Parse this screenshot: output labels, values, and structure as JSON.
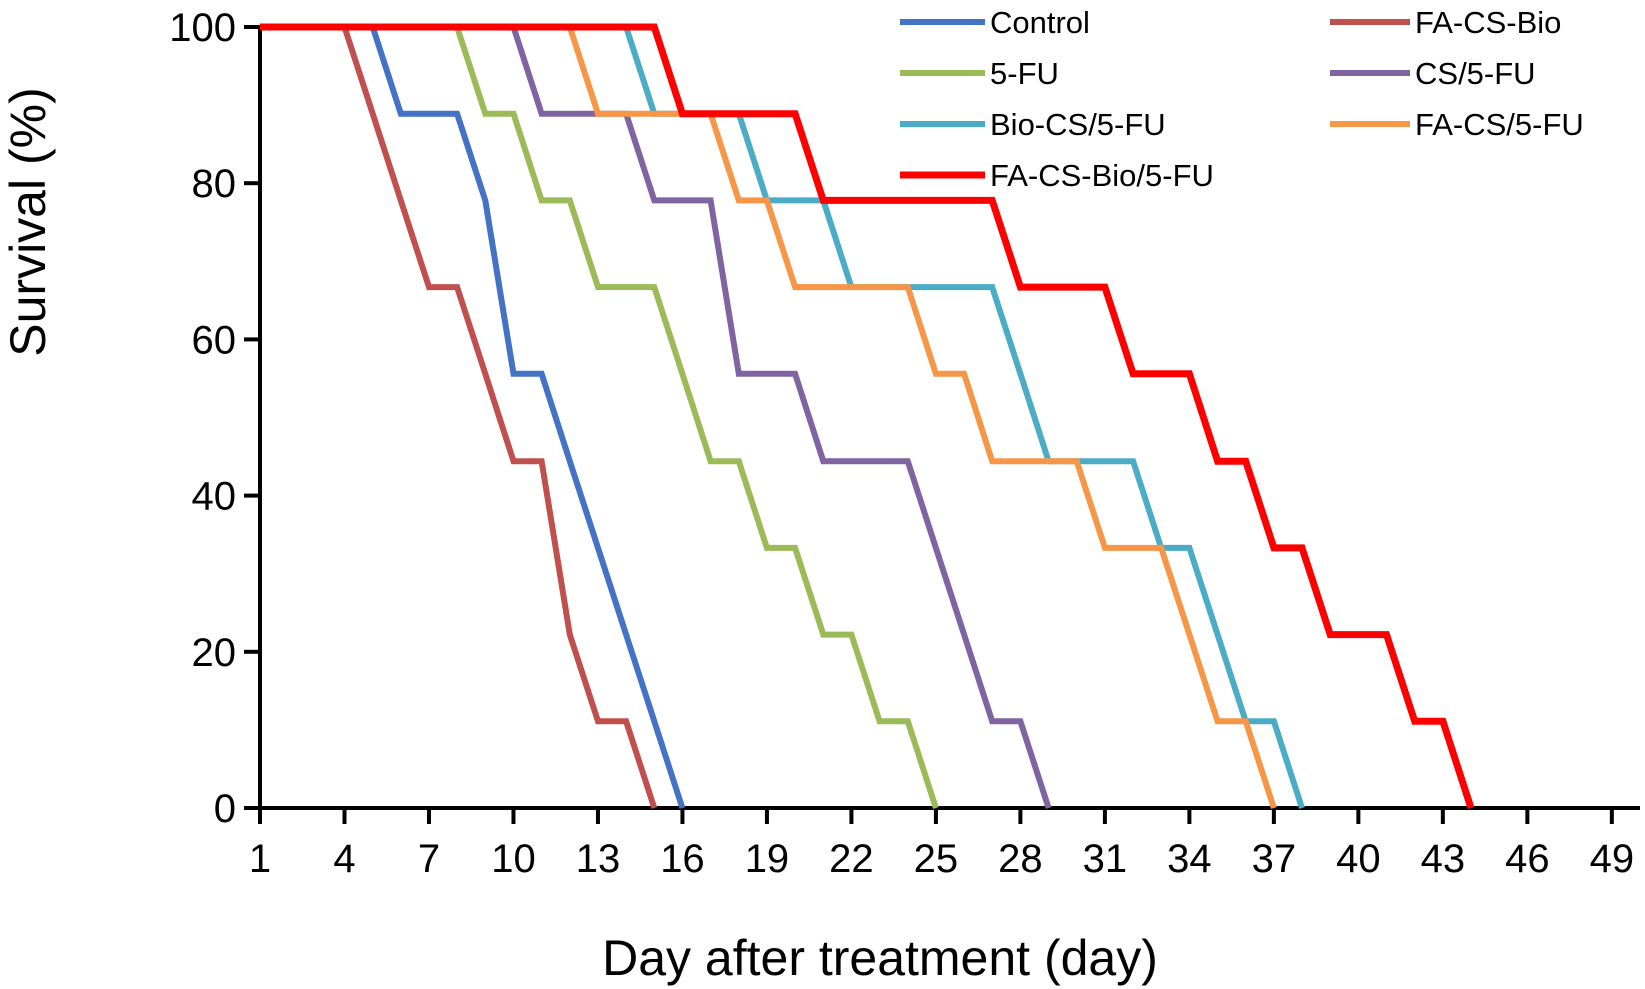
{
  "chart_data": {
    "type": "line",
    "step": true,
    "title": "",
    "xlabel": "Day after treatment (day)",
    "ylabel": "Survival (%)",
    "xlim": [
      1,
      50
    ],
    "ylim": [
      0,
      100
    ],
    "xticks": [
      1,
      4,
      7,
      10,
      13,
      16,
      19,
      22,
      25,
      28,
      31,
      34,
      37,
      40,
      43,
      46,
      49
    ],
    "yticks": [
      0,
      20,
      40,
      60,
      80,
      100
    ],
    "grid": false,
    "legend_position": "top-right",
    "series": [
      {
        "name": "Control",
        "color": "#4472C4",
        "points": [
          [
            1,
            100
          ],
          [
            5,
            100
          ],
          [
            6,
            88.9
          ],
          [
            8,
            88.9
          ],
          [
            9,
            77.8
          ],
          [
            10,
            55.6
          ],
          [
            11,
            55.6
          ],
          [
            12,
            44.4
          ],
          [
            13,
            33.3
          ],
          [
            14,
            22.2
          ],
          [
            15,
            11.1
          ],
          [
            16,
            0
          ]
        ]
      },
      {
        "name": "FA-CS-Bio",
        "color": "#C0504D",
        "points": [
          [
            1,
            100
          ],
          [
            4,
            100
          ],
          [
            5,
            88.9
          ],
          [
            6,
            77.8
          ],
          [
            7,
            66.7
          ],
          [
            8,
            66.7
          ],
          [
            9,
            55.6
          ],
          [
            10,
            44.4
          ],
          [
            11,
            44.4
          ],
          [
            12,
            22.2
          ],
          [
            13,
            11.1
          ],
          [
            14,
            11.1
          ],
          [
            15,
            0
          ]
        ]
      },
      {
        "name": "5-FU",
        "color": "#9BBB59",
        "points": [
          [
            1,
            100
          ],
          [
            8,
            100
          ],
          [
            9,
            88.9
          ],
          [
            10,
            88.9
          ],
          [
            11,
            77.8
          ],
          [
            12,
            77.8
          ],
          [
            13,
            66.7
          ],
          [
            15,
            66.7
          ],
          [
            16,
            55.6
          ],
          [
            17,
            44.4
          ],
          [
            18,
            44.4
          ],
          [
            19,
            33.3
          ],
          [
            20,
            33.3
          ],
          [
            21,
            22.2
          ],
          [
            22,
            22.2
          ],
          [
            23,
            11.1
          ],
          [
            24,
            11.1
          ],
          [
            25,
            0
          ]
        ]
      },
      {
        "name": "CS/5-FU",
        "color": "#8064A2",
        "points": [
          [
            1,
            100
          ],
          [
            10,
            100
          ],
          [
            11,
            88.9
          ],
          [
            14,
            88.9
          ],
          [
            15,
            77.8
          ],
          [
            17,
            77.8
          ],
          [
            18,
            55.6
          ],
          [
            20,
            55.6
          ],
          [
            21,
            44.4
          ],
          [
            24,
            44.4
          ],
          [
            25,
            33.3
          ],
          [
            26,
            22.2
          ],
          [
            27,
            11.1
          ],
          [
            28,
            11.1
          ],
          [
            29,
            0
          ]
        ]
      },
      {
        "name": "Bio-CS/5-FU",
        "color": "#4BACC6",
        "points": [
          [
            1,
            100
          ],
          [
            14,
            100
          ],
          [
            15,
            88.9
          ],
          [
            18,
            88.9
          ],
          [
            19,
            77.8
          ],
          [
            21,
            77.8
          ],
          [
            22,
            66.7
          ],
          [
            27,
            66.7
          ],
          [
            28,
            55.6
          ],
          [
            29,
            44.4
          ],
          [
            32,
            44.4
          ],
          [
            33,
            33.3
          ],
          [
            34,
            33.3
          ],
          [
            35,
            22.2
          ],
          [
            36,
            11.1
          ],
          [
            37,
            11.1
          ],
          [
            38,
            0
          ]
        ]
      },
      {
        "name": "FA-CS/5-FU",
        "color": "#F79646",
        "points": [
          [
            1,
            100
          ],
          [
            12,
            100
          ],
          [
            13,
            88.9
          ],
          [
            17,
            88.9
          ],
          [
            18,
            77.8
          ],
          [
            19,
            77.8
          ],
          [
            20,
            66.7
          ],
          [
            24,
            66.7
          ],
          [
            25,
            55.6
          ],
          [
            26,
            55.6
          ],
          [
            27,
            44.4
          ],
          [
            30,
            44.4
          ],
          [
            31,
            33.3
          ],
          [
            33,
            33.3
          ],
          [
            34,
            22.2
          ],
          [
            35,
            11.1
          ],
          [
            36,
            11.1
          ],
          [
            37,
            0
          ]
        ]
      },
      {
        "name": "FA-CS-Bio/5-FU",
        "color": "#FF0000",
        "points": [
          [
            1,
            100
          ],
          [
            15,
            100
          ],
          [
            16,
            88.9
          ],
          [
            20,
            88.9
          ],
          [
            21,
            77.8
          ],
          [
            27,
            77.8
          ],
          [
            28,
            66.7
          ],
          [
            31,
            66.7
          ],
          [
            32,
            55.6
          ],
          [
            34,
            55.6
          ],
          [
            35,
            44.4
          ],
          [
            36,
            44.4
          ],
          [
            37,
            33.3
          ],
          [
            38,
            33.3
          ],
          [
            39,
            22.2
          ],
          [
            41,
            22.2
          ],
          [
            42,
            11.1
          ],
          [
            43,
            11.1
          ],
          [
            44,
            0
          ]
        ]
      }
    ]
  }
}
